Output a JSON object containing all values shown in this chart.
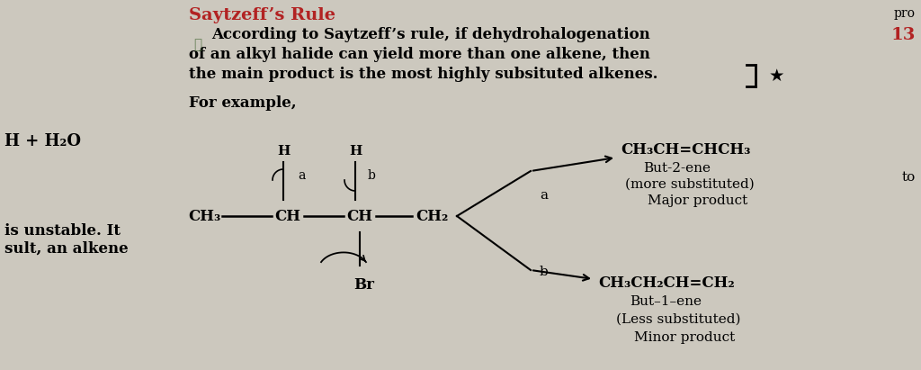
{
  "bg_color": "#ccc8be",
  "title": "Saytzeff’s Rule",
  "title_color": "#b22222",
  "title_fontsize": 14,
  "body_line1": "According to Saytzeff’s rule, if dehydrohalogenation",
  "body_line2": "of an alkyl halide can yield more than one alkene, then",
  "body_line3": "the main product is the most highly subsituted alkenes.",
  "body_fontsize": 12,
  "example_text": "For example,",
  "example_fontsize": 12,
  "left_text1": "H + H₂O",
  "left_text2": "is unstable. It\nsult, an alkene",
  "right_text1": "pro",
  "right_text2": "13",
  "right_text3": "to",
  "product_a_formula": "CH₃CH=CHCH₃",
  "product_a_name": "But-2-ene",
  "product_a_desc1": "(more substituted)",
  "product_a_desc2": "Major product",
  "product_b_formula": "CH₃CH₂CH=CH₂",
  "product_b_name": "But–1–ene",
  "product_b_desc1": "(Less substituted)",
  "product_b_desc2": "Minor product",
  "arrow_a_label": "a",
  "arrow_b_label": "b",
  "mol_ch3": "CH₃",
  "mol_ch1": "CH",
  "mol_ch2": "CH",
  "mol_ch2end": "CH₂",
  "mol_br": "Br",
  "mol_h": "H"
}
